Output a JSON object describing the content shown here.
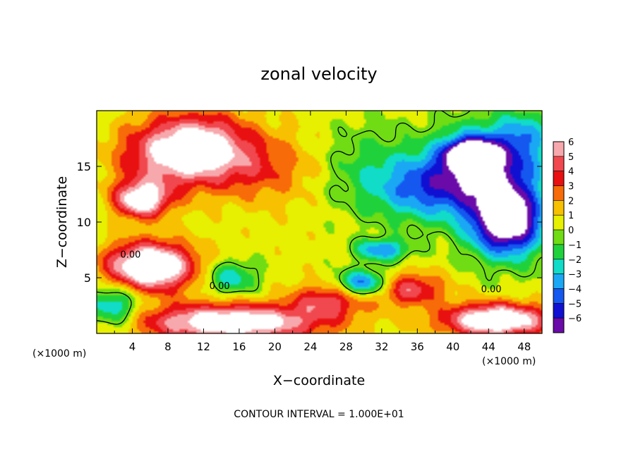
{
  "chart_data": {
    "type": "heatmap",
    "title": "zonal velocity",
    "xlabel": "X−coordinate",
    "ylabel": "Z−coordinate",
    "x_unit_left": "(×1000 m)",
    "x_unit_right": "(×1000 m)",
    "footer": "CONTOUR INTERVAL = 1.000E+01",
    "xlim": [
      0,
      50
    ],
    "ylim": [
      0,
      20
    ],
    "x_ticks": [
      4,
      8,
      12,
      16,
      20,
      24,
      28,
      32,
      36,
      40,
      44,
      48
    ],
    "y_ticks": [
      5,
      10,
      15
    ],
    "colorbar": {
      "min": -6,
      "max": 6,
      "levels": [
        {
          "label": "6",
          "color": "#f7a8ac"
        },
        {
          "label": "5",
          "color": "#f0484e"
        },
        {
          "label": "4",
          "color": "#e81010"
        },
        {
          "label": "3",
          "color": "#f76b08"
        },
        {
          "label": "2",
          "color": "#f7c000"
        },
        {
          "label": "1",
          "color": "#e6f000"
        },
        {
          "label": "0",
          "color": "#6fdc14"
        },
        {
          "label": "−1",
          "color": "#1fd23c"
        },
        {
          "label": "−2",
          "color": "#10dcc8"
        },
        {
          "label": "−3",
          "color": "#1aa8f5"
        },
        {
          "label": "−4",
          "color": "#1458f0"
        },
        {
          "label": "−5",
          "color": "#1010d2"
        },
        {
          "label": "−6",
          "color": "#6a0aa8"
        }
      ]
    },
    "contour_labels": [
      {
        "text": "0.00",
        "x": 3.8,
        "y": 6.8
      },
      {
        "text": "0.00",
        "x": 13.8,
        "y": 4.0
      },
      {
        "text": "0.00",
        "x": 44.3,
        "y": 3.7
      }
    ],
    "field_features": [
      {
        "center": [
          8,
          16
        ],
        "radius": [
          6,
          3.2
        ],
        "value": 4.5
      },
      {
        "center": [
          5,
          12
        ],
        "radius": [
          3,
          1.6
        ],
        "value": 6.5
      },
      {
        "center": [
          12,
          17
        ],
        "radius": [
          5,
          2.8
        ],
        "value": 4.0
      },
      {
        "center": [
          6,
          6
        ],
        "radius": [
          5,
          2.2
        ],
        "value": 8.0
      },
      {
        "center": [
          18,
          15
        ],
        "radius": [
          6,
          3
        ],
        "value": 2.5
      },
      {
        "center": [
          44,
          15
        ],
        "radius": [
          6,
          3.5
        ],
        "value": -6.0
      },
      {
        "center": [
          42,
          16
        ],
        "radius": [
          2.5,
          1.3
        ],
        "value": -8.0
      },
      {
        "center": [
          46,
          10
        ],
        "radius": [
          4,
          3
        ],
        "value": -8.5
      },
      {
        "center": [
          37,
          13
        ],
        "radius": [
          6,
          3
        ],
        "value": -4.0
      },
      {
        "center": [
          30,
          15
        ],
        "radius": [
          5,
          4
        ],
        "value": -1.5
      },
      {
        "center": [
          30,
          4.5
        ],
        "radius": [
          3,
          1.2
        ],
        "value": -5.0
      },
      {
        "center": [
          32,
          7.5
        ],
        "radius": [
          3,
          1
        ],
        "value": -4.0
      },
      {
        "center": [
          35,
          4
        ],
        "radius": [
          4,
          1.5
        ],
        "value": 4.0
      },
      {
        "center": [
          15,
          1
        ],
        "radius": [
          10,
          1.6
        ],
        "value": 7.0
      },
      {
        "center": [
          45,
          1.2
        ],
        "radius": [
          6,
          1.5
        ],
        "value": 7.5
      },
      {
        "center": [
          2,
          2.5
        ],
        "radius": [
          3,
          2
        ],
        "value": -3.5
      },
      {
        "center": [
          15,
          5
        ],
        "radius": [
          3,
          1.5
        ],
        "value": -3.0
      },
      {
        "center": [
          26,
          3
        ],
        "radius": [
          4,
          1.5
        ],
        "value": 3.5
      },
      {
        "center": [
          48,
          18
        ],
        "radius": [
          3,
          2
        ],
        "value": -2.0
      }
    ]
  }
}
